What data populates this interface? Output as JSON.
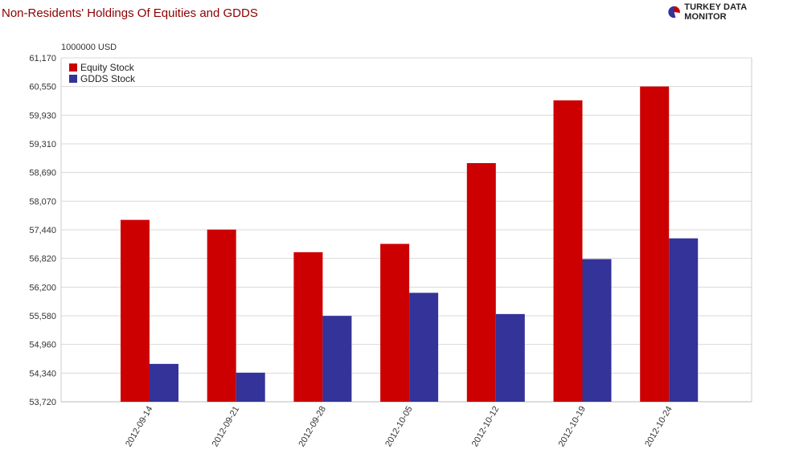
{
  "brand": {
    "name": "TURKEY DATA MONITOR",
    "icon": "pie-chart-logo-icon"
  },
  "chart_data": {
    "type": "bar",
    "title": "Non-Residents' Holdings Of Equities and GDDS",
    "ylabel": "1000000 USD",
    "xlabel": "",
    "categories": [
      "2012-09-14",
      "2012-09-21",
      "2012-09-28",
      "2012-10-05",
      "2012-10-12",
      "2012-10-19",
      "2012-10-24"
    ],
    "series": [
      {
        "name": "Equity Stock",
        "color": "#cc0000",
        "values": [
          57660,
          57450,
          56960,
          57140,
          58890,
          60250,
          60550
        ]
      },
      {
        "name": "GDDS Stock",
        "color": "#333399",
        "values": [
          54540,
          54350,
          55580,
          56080,
          55620,
          56810,
          57260
        ]
      }
    ],
    "ylim": [
      53720,
      61170
    ],
    "yticks": [
      "53,720",
      "54,340",
      "54,960",
      "55,580",
      "56,200",
      "56,820",
      "57,440",
      "58,070",
      "58,690",
      "59,310",
      "59,930",
      "60,550",
      "61,170"
    ],
    "grid": true,
    "legend": "top-left"
  }
}
